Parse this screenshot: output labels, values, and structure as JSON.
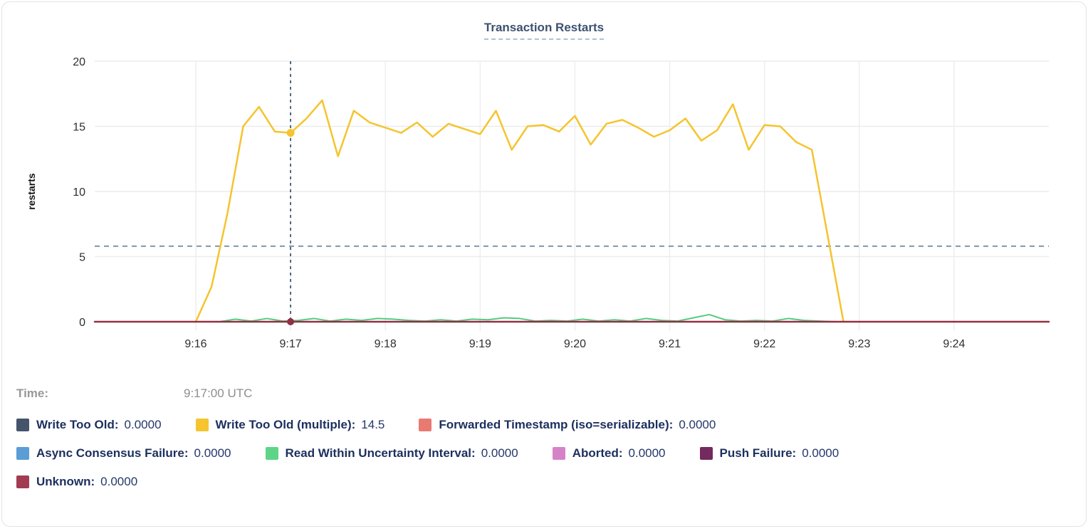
{
  "chart_data": {
    "type": "line",
    "title": "Transaction Restarts",
    "ylabel": "restarts",
    "ylim": [
      0,
      20
    ],
    "y_ticks": [
      0,
      5,
      10,
      15,
      20
    ],
    "x_tick_labels": [
      "9:16",
      "9:17",
      "9:18",
      "9:19",
      "9:20",
      "9:21",
      "9:22",
      "9:23",
      "9:24"
    ],
    "x_tick_seconds": [
      0,
      60,
      120,
      180,
      240,
      300,
      360,
      420,
      480
    ],
    "x_domain_seconds": [
      -64,
      540
    ],
    "grid": true,
    "legend_position": "bottom",
    "threshold_dashed_line_y": 5.8,
    "crosshair": {
      "t_seconds": 60,
      "time_label": "9:17:00 UTC",
      "highlight_value": 14.5,
      "baseline_value": 0
    },
    "series": [
      {
        "name": "Write Too Old (multiple)",
        "color": "#f5c42e",
        "width": 2.5,
        "points": [
          [
            0,
            0
          ],
          [
            10,
            2.7
          ],
          [
            20,
            8.3
          ],
          [
            30,
            15.0
          ],
          [
            40,
            16.5
          ],
          [
            50,
            14.6
          ],
          [
            60,
            14.5
          ],
          [
            70,
            15.6
          ],
          [
            80,
            17.0
          ],
          [
            90,
            12.7
          ],
          [
            100,
            16.2
          ],
          [
            110,
            15.3
          ],
          [
            120,
            14.9
          ],
          [
            130,
            14.5
          ],
          [
            140,
            15.3
          ],
          [
            150,
            14.2
          ],
          [
            160,
            15.2
          ],
          [
            170,
            14.8
          ],
          [
            180,
            14.4
          ],
          [
            190,
            16.2
          ],
          [
            200,
            13.2
          ],
          [
            210,
            15.0
          ],
          [
            220,
            15.1
          ],
          [
            230,
            14.6
          ],
          [
            240,
            15.8
          ],
          [
            250,
            13.6
          ],
          [
            260,
            15.2
          ],
          [
            270,
            15.5
          ],
          [
            280,
            14.9
          ],
          [
            290,
            14.2
          ],
          [
            300,
            14.7
          ],
          [
            310,
            15.6
          ],
          [
            320,
            13.9
          ],
          [
            330,
            14.7
          ],
          [
            340,
            16.7
          ],
          [
            350,
            13.2
          ],
          [
            360,
            15.1
          ],
          [
            370,
            15.0
          ],
          [
            380,
            13.8
          ],
          [
            390,
            13.2
          ],
          [
            400,
            6.6
          ],
          [
            410,
            0
          ]
        ]
      },
      {
        "name": "Read Within Uncertainty Interval",
        "color": "#52cc80",
        "width": 2,
        "points": [
          [
            15,
            0
          ],
          [
            25,
            0.2
          ],
          [
            35,
            0.05
          ],
          [
            45,
            0.25
          ],
          [
            55,
            0.05
          ],
          [
            65,
            0.1
          ],
          [
            75,
            0.25
          ],
          [
            85,
            0.05
          ],
          [
            95,
            0.2
          ],
          [
            105,
            0.1
          ],
          [
            115,
            0.25
          ],
          [
            125,
            0.2
          ],
          [
            135,
            0.1
          ],
          [
            145,
            0.05
          ],
          [
            155,
            0.15
          ],
          [
            165,
            0.05
          ],
          [
            175,
            0.2
          ],
          [
            185,
            0.15
          ],
          [
            195,
            0.3
          ],
          [
            205,
            0.25
          ],
          [
            215,
            0.05
          ],
          [
            225,
            0.1
          ],
          [
            235,
            0.05
          ],
          [
            245,
            0.2
          ],
          [
            255,
            0.05
          ],
          [
            265,
            0.15
          ],
          [
            275,
            0.05
          ],
          [
            285,
            0.25
          ],
          [
            295,
            0.1
          ],
          [
            305,
            0.05
          ],
          [
            315,
            0.3
          ],
          [
            325,
            0.55
          ],
          [
            335,
            0.15
          ],
          [
            345,
            0.05
          ],
          [
            355,
            0.1
          ],
          [
            365,
            0.05
          ],
          [
            375,
            0.25
          ],
          [
            385,
            0.1
          ],
          [
            395,
            0.05
          ],
          [
            405,
            0
          ]
        ]
      },
      {
        "name": "Unknown",
        "color": "#942f44",
        "width": 2.5,
        "points": [
          [
            -64,
            0
          ],
          [
            540,
            0
          ]
        ]
      }
    ]
  },
  "time_row": {
    "label": "Time:",
    "value": "9:17:00 UTC"
  },
  "legend": {
    "items": [
      {
        "label": "Write Too Old",
        "value": "0.0000",
        "color": "#44546b"
      },
      {
        "label": "Write Too Old (multiple)",
        "value": "14.5",
        "color": "#f5c42e"
      },
      {
        "label": "Forwarded Timestamp (iso=serializable)",
        "value": "0.0000",
        "color": "#e87a72"
      },
      {
        "label": "Async Consensus Failure",
        "value": "0.0000",
        "color": "#5b9dd5"
      },
      {
        "label": "Read Within Uncertainty Interval",
        "value": "0.0000",
        "color": "#5ed489"
      },
      {
        "label": "Aborted",
        "value": "0.0000",
        "color": "#d583c8"
      },
      {
        "label": "Push Failure",
        "value": "0.0000",
        "color": "#74295f"
      },
      {
        "label": "Unknown",
        "value": "0.0000",
        "color": "#a23c53"
      }
    ]
  }
}
